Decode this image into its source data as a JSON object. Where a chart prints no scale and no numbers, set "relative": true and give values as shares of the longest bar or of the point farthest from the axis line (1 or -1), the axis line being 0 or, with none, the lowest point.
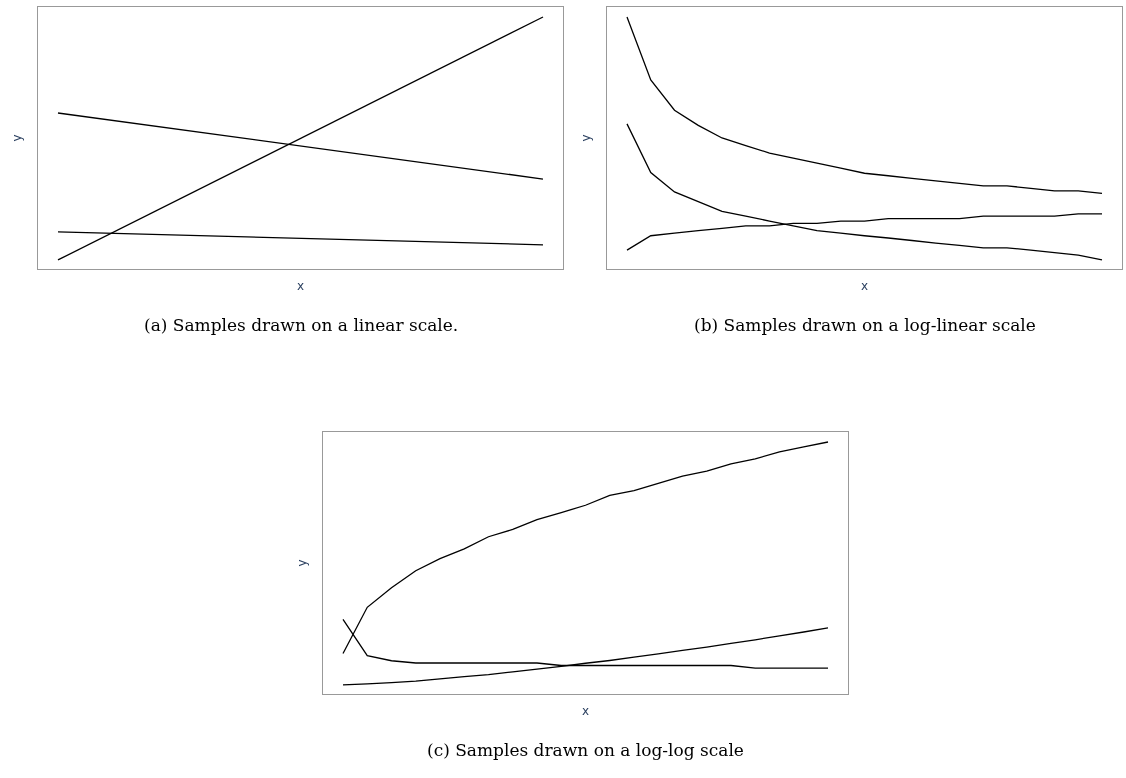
{
  "chart_data": [
    {
      "type": "line",
      "relative": true,
      "xlabel": "x",
      "ylabel": "y",
      "categories": [
        null,
        null
      ],
      "series": [
        {
          "color": "#000000",
          "values": [
            0.036,
            1.0
          ]
        },
        {
          "color": "#000000",
          "values": [
            0.619,
            0.357
          ]
        },
        {
          "color": "#000000",
          "values": [
            0.147,
            0.096
          ]
        }
      ],
      "annotations": [
        "(a) Samples drawn on a linear scale."
      ]
    },
    {
      "type": "line",
      "relative": true,
      "xlabel": "x",
      "ylabel": "y",
      "categories": [
        null,
        null,
        null,
        null,
        null,
        null,
        null,
        null,
        null,
        null,
        null,
        null,
        null,
        null,
        null,
        null,
        null,
        null,
        null,
        null,
        null
      ],
      "series": [
        {
          "color": "#000000",
          "values": [
            1.0,
            0.75,
            0.63,
            0.57,
            0.52,
            0.49,
            0.46,
            0.44,
            0.42,
            0.4,
            0.38,
            0.37,
            0.36,
            0.35,
            0.34,
            0.33,
            0.33,
            0.32,
            0.31,
            0.31,
            0.3
          ]
        },
        {
          "color": "#000000",
          "values": [
            0.576,
            0.383,
            0.306,
            0.267,
            0.229,
            0.21,
            0.19,
            0.171,
            0.152,
            0.142,
            0.132,
            0.123,
            0.113,
            0.103,
            0.094,
            0.084,
            0.084,
            0.075,
            0.065,
            0.055,
            0.036
          ]
        },
        {
          "color": "#000000",
          "values": [
            0.075,
            0.132,
            0.142,
            0.152,
            0.161,
            0.171,
            0.171,
            0.181,
            0.181,
            0.19,
            0.19,
            0.2,
            0.2,
            0.2,
            0.2,
            0.21,
            0.21,
            0.21,
            0.21,
            0.219,
            0.219
          ]
        }
      ],
      "annotations": [
        "(b) Samples drawn on a log-linear scale"
      ]
    },
    {
      "type": "line",
      "relative": true,
      "xlabel": "x",
      "ylabel": "y",
      "categories": [
        null,
        null,
        null,
        null,
        null,
        null,
        null,
        null,
        null,
        null,
        null,
        null,
        null,
        null,
        null,
        null,
        null,
        null,
        null,
        null,
        null
      ],
      "series": [
        {
          "color": "#000000",
          "values": [
            0.161,
            0.344,
            0.422,
            0.489,
            0.537,
            0.576,
            0.624,
            0.653,
            0.692,
            0.72,
            0.749,
            0.788,
            0.807,
            0.836,
            0.865,
            0.884,
            0.913,
            0.933,
            0.961,
            0.981,
            1.0
          ]
        },
        {
          "color": "#000000",
          "values": [
            0.296,
            0.152,
            0.132,
            0.123,
            0.123,
            0.123,
            0.123,
            0.123,
            0.123,
            0.113,
            0.113,
            0.113,
            0.113,
            0.113,
            0.113,
            0.113,
            0.113,
            0.103,
            0.103,
            0.103,
            0.103
          ]
        },
        {
          "color": "#000000",
          "values": [
            0.036,
            0.04,
            0.045,
            0.051,
            0.06,
            0.069,
            0.077,
            0.088,
            0.099,
            0.11,
            0.122,
            0.133,
            0.146,
            0.159,
            0.173,
            0.186,
            0.201,
            0.215,
            0.231,
            0.246,
            0.262
          ]
        }
      ],
      "annotations": [
        "(c) Samples drawn on a log-log scale"
      ]
    }
  ]
}
